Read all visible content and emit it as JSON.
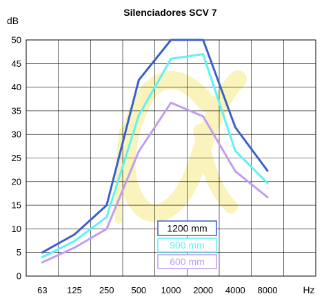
{
  "chart_data": {
    "type": "line",
    "title": "Silenciadores SCV 7",
    "ylabel": "dB",
    "xlabel": "Hz",
    "categories": [
      "63",
      "125",
      "250",
      "500",
      "1000",
      "2000",
      "4000",
      "8000"
    ],
    "ylim": [
      0,
      50
    ],
    "yticks": [
      0,
      5,
      10,
      15,
      20,
      25,
      30,
      35,
      40,
      45,
      50
    ],
    "grid": true,
    "legend_position": "bottom-center",
    "series": [
      {
        "name": "1200 mm",
        "color": "#3a5fcd",
        "values": [
          5.0,
          8.8,
          15.0,
          41.5,
          50.0,
          50.0,
          31.5,
          22.3
        ]
      },
      {
        "name": "900 mm",
        "color": "#5ff2f2",
        "values": [
          4.0,
          7.4,
          12.5,
          34.0,
          46.0,
          47.0,
          26.5,
          19.7
        ]
      },
      {
        "name": "600 mm",
        "color": "#c09cf2",
        "values": [
          2.9,
          6.0,
          10.0,
          26.4,
          36.7,
          33.8,
          22.2,
          16.7
        ]
      }
    ]
  },
  "logo": {
    "name": "alpha-watermark",
    "color": "#f5e66a"
  }
}
